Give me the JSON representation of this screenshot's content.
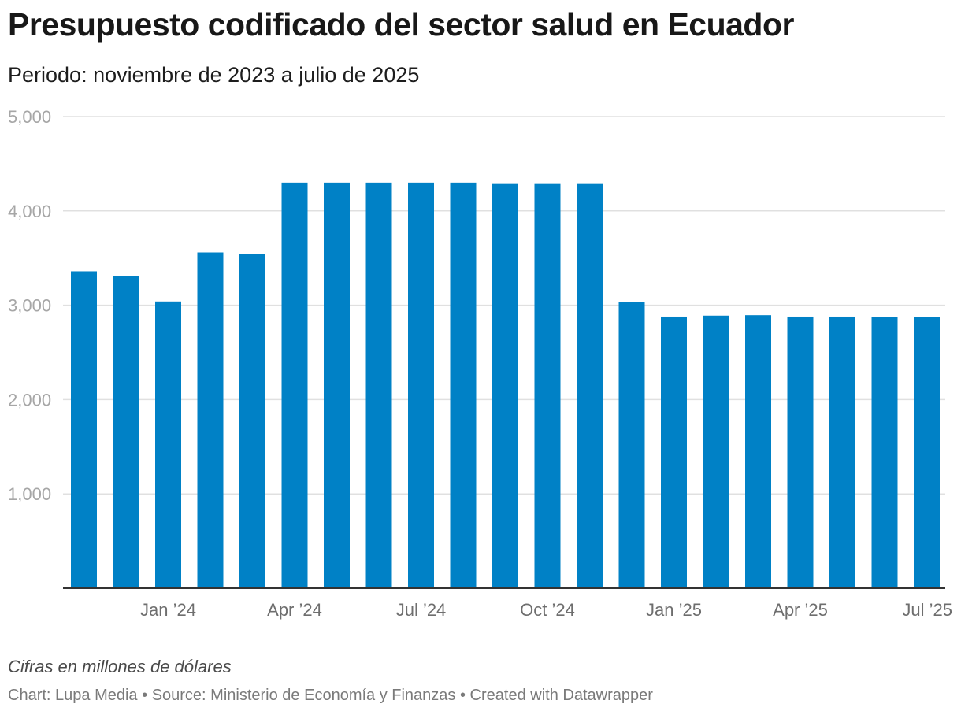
{
  "header": {
    "title": "Presupuesto codificado del sector salud en Ecuador",
    "subtitle": "Periodo: noviembre de 2023 a julio de 2025"
  },
  "notes": {
    "units": "Cifras en millones de dólares",
    "footer": {
      "chart_label": "Chart: ",
      "chart_author": "Lupa Media",
      "separator_1": " • ",
      "source_label": "Source: ",
      "source_name": "Ministerio de Economía y Finanzas",
      "separator_2": " • ",
      "credit": "Created with Datawrapper"
    }
  },
  "colors": {
    "bar": "#0081c6",
    "grid": "#e0e0e0",
    "axis": "#333333"
  },
  "chart_data": {
    "type": "bar",
    "title": "Presupuesto codificado del sector salud en Ecuador",
    "subtitle": "Periodo: noviembre de 2023 a julio de 2025",
    "xlabel": "",
    "ylabel": "",
    "ylim": [
      0,
      5000
    ],
    "grid": true,
    "y_ticks": [
      1000,
      2000,
      3000,
      4000,
      5000
    ],
    "y_tick_labels": [
      "1,000",
      "2,000",
      "3,000",
      "4,000",
      "5,000"
    ],
    "categories": [
      "Nov 2023",
      "Dec 2023",
      "Jan 2024",
      "Feb 2024",
      "Mar 2024",
      "Apr 2024",
      "May 2024",
      "Jun 2024",
      "Jul 2024",
      "Aug 2024",
      "Sep 2024",
      "Oct 2024",
      "Nov 2024",
      "Dec 2024",
      "Jan 2025",
      "Feb 2025",
      "Mar 2025",
      "Apr 2025",
      "May 2025",
      "Jun 2025",
      "Jul 2025"
    ],
    "values": [
      3360,
      3310,
      3040,
      3560,
      3540,
      4300,
      4300,
      4300,
      4300,
      4300,
      4285,
      4285,
      4285,
      3030,
      2880,
      2890,
      2895,
      2880,
      2880,
      2875,
      2875
    ],
    "x_tick_labels": [
      {
        "label": "Jan ’24",
        "index": 2
      },
      {
        "label": "Apr ’24",
        "index": 5
      },
      {
        "label": "Jul ’24",
        "index": 8
      },
      {
        "label": "Oct ’24",
        "index": 11
      },
      {
        "label": "Jan ’25",
        "index": 14
      },
      {
        "label": "Apr ’25",
        "index": 17
      },
      {
        "label": "Jul ’25",
        "index": 20
      }
    ]
  }
}
